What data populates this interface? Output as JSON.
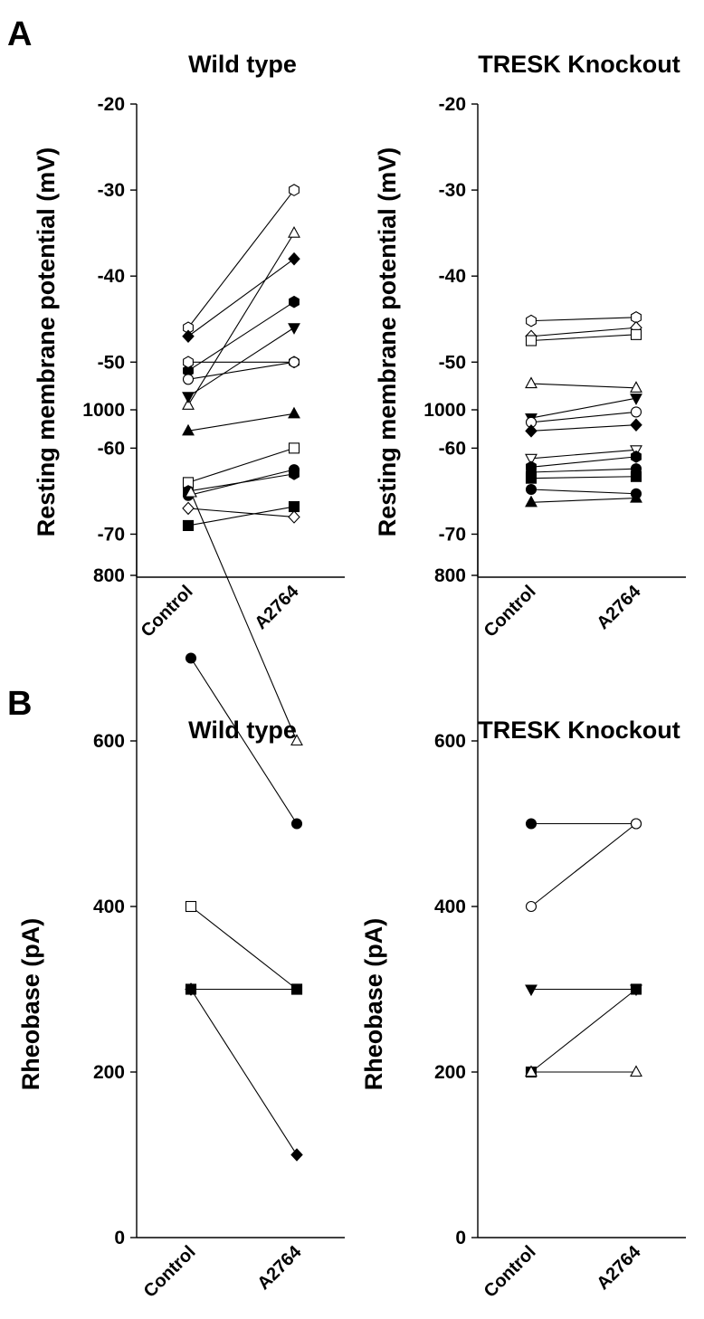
{
  "panel_letters": [
    "A",
    "B"
  ],
  "chart_data": [
    {
      "type": "line",
      "panel": "A",
      "title": "Wild type",
      "xlabel": "",
      "ylabel": "Resting membrane potential (mV)",
      "categories": [
        "Control",
        "A2764"
      ],
      "ylim": [
        -75,
        -20
      ],
      "yticks": [
        "-20",
        "-30",
        "-40",
        "-50",
        "-60",
        "-70"
      ],
      "ytick_values": [
        -20,
        -30,
        -40,
        -50,
        -60,
        -70
      ],
      "grid": false,
      "series": [
        {
          "marker": "hexagon-open",
          "values": [
            -46,
            -30
          ]
        },
        {
          "marker": "triangle-up-open",
          "values": [
            -55,
            -35
          ]
        },
        {
          "marker": "diamond-filled",
          "values": [
            -47,
            -38
          ]
        },
        {
          "marker": "hexagon-filled",
          "values": [
            -51,
            -43
          ]
        },
        {
          "marker": "triangle-down-filled",
          "values": [
            -54,
            -46
          ]
        },
        {
          "marker": "hexagon-open",
          "values": [
            -50,
            -50
          ]
        },
        {
          "marker": "circle-open",
          "values": [
            -52,
            -50
          ]
        },
        {
          "marker": "triangle-up-filled",
          "values": [
            -58,
            -56
          ]
        },
        {
          "marker": "square-open",
          "values": [
            -64,
            -60
          ]
        },
        {
          "marker": "circle-filled",
          "values": [
            -65.5,
            -62.5
          ]
        },
        {
          "marker": "hexagon-filled",
          "values": [
            -65,
            -63
          ]
        },
        {
          "marker": "square-filled",
          "values": [
            -69,
            -66.8
          ]
        },
        {
          "marker": "diamond-open",
          "values": [
            -67,
            -68
          ]
        }
      ]
    },
    {
      "type": "line",
      "panel": "A",
      "title": "TRESK Knockout",
      "xlabel": "",
      "ylabel": "Resting membrane potential (mV)",
      "categories": [
        "Control",
        "A2764"
      ],
      "ylim": [
        -75,
        -20
      ],
      "yticks": [
        "-20",
        "-30",
        "-40",
        "-50",
        "-60",
        "-70"
      ],
      "ytick_values": [
        -20,
        -30,
        -40,
        -50,
        -60,
        -70
      ],
      "grid": false,
      "series": [
        {
          "marker": "hexagon-open",
          "values": [
            -45.2,
            -44.8
          ]
        },
        {
          "marker": "diamond-open",
          "values": [
            -47,
            -46
          ]
        },
        {
          "marker": "square-open",
          "values": [
            -47.5,
            -46.8
          ]
        },
        {
          "marker": "triangle-up-open",
          "values": [
            -52.5,
            -53
          ]
        },
        {
          "marker": "triangle-down-filled",
          "values": [
            -56.5,
            -54.2
          ]
        },
        {
          "marker": "circle-open",
          "values": [
            -57,
            -55.8
          ]
        },
        {
          "marker": "diamond-filled",
          "values": [
            -58,
            -57.3
          ]
        },
        {
          "marker": "triangle-down-open",
          "values": [
            -61.2,
            -60.2
          ]
        },
        {
          "marker": "hexagon-filled",
          "values": [
            -62.2,
            -61
          ]
        },
        {
          "marker": "circle-filled",
          "values": [
            -62.8,
            -62.4
          ]
        },
        {
          "marker": "square-filled",
          "values": [
            -63.5,
            -63.3
          ]
        },
        {
          "marker": "circle-filled",
          "values": [
            -64.8,
            -65.3
          ]
        },
        {
          "marker": "triangle-up-filled",
          "values": [
            -66.3,
            -65.8
          ]
        }
      ]
    },
    {
      "type": "line",
      "panel": "B",
      "title": "Wild type",
      "xlabel": "",
      "ylabel": "Rheobase (pA)",
      "categories": [
        "Control",
        "A2764"
      ],
      "ylim": [
        0,
        1000
      ],
      "yticks": [
        "0",
        "200",
        "400",
        "600",
        "800",
        "1000"
      ],
      "ytick_values": [
        0,
        200,
        400,
        600,
        800,
        1000
      ],
      "grid": false,
      "series": [
        {
          "marker": "triangle-up-open",
          "values": [
            900,
            600
          ]
        },
        {
          "marker": "circle-filled",
          "values": [
            700,
            500
          ]
        },
        {
          "marker": "square-open",
          "values": [
            400,
            300
          ]
        },
        {
          "marker": "square-filled",
          "values": [
            300,
            300
          ]
        },
        {
          "marker": "diamond-filled",
          "values": [
            300,
            100
          ]
        }
      ]
    },
    {
      "type": "line",
      "panel": "B",
      "title": "TRESK Knockout",
      "xlabel": "",
      "ylabel": "Rheobase (pA)",
      "categories": [
        "Control",
        "A2764"
      ],
      "ylim": [
        0,
        1000
      ],
      "yticks": [
        "0",
        "200",
        "400",
        "600",
        "800",
        "1000"
      ],
      "ytick_values": [
        0,
        200,
        400,
        600,
        800,
        1000
      ],
      "grid": false,
      "series": [
        {
          "marker": "circle-filled",
          "values": [
            500,
            500
          ]
        },
        {
          "marker": "circle-open",
          "values": [
            400,
            500
          ]
        },
        {
          "marker": "triangle-down-filled",
          "values": [
            300,
            300
          ]
        },
        {
          "marker": "square-filled",
          "values": [
            200,
            300
          ]
        },
        {
          "marker": "triangle-up-open",
          "values": [
            200,
            200
          ]
        }
      ]
    }
  ]
}
